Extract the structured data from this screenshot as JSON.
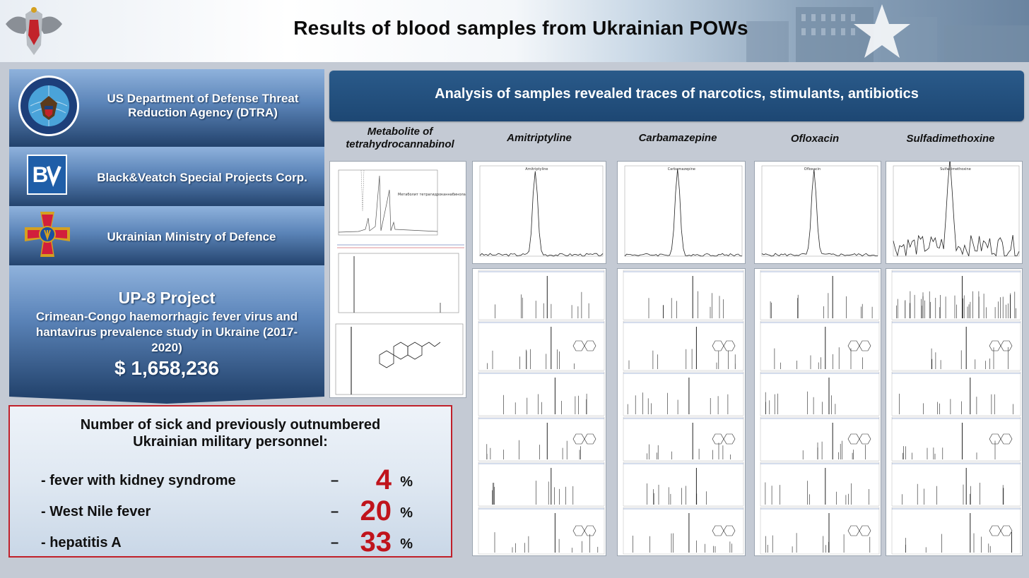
{
  "header": {
    "title": "Results of blood samples from Ukrainian POWs"
  },
  "left": {
    "dtra": "US Department of Defense Threat Reduction Agency (DTRA)",
    "dtra_seal_text": "DEFENSE THREAT REDUCTION AGENCY · UNITED STATES OF AMERICA",
    "bv": "Black&Veatch Special Projects Corp.",
    "ua": "Ukrainian Ministry of Defence",
    "project": {
      "name": "UP-8 Project",
      "description": "Crimean-Congo haemorrhagic fever virus and hantavirus prevalence study in Ukraine (2017-2020)",
      "amount": "$ 1,658,236"
    }
  },
  "stats": {
    "heading_line1": "Number of sick and previously outnumbered",
    "heading_line2": "Ukrainian military personnel:",
    "rows": [
      {
        "label": "- fever with kidney syndrome",
        "dash": "–",
        "value": "4",
        "unit": "%"
      },
      {
        "label": "- West Nile fever",
        "dash": "–",
        "value": "20",
        "unit": "%"
      },
      {
        "label": "- hepatitis A",
        "dash": "–",
        "value": "33",
        "unit": "%"
      }
    ]
  },
  "analysis": {
    "banner": "Analysis of samples revealed traces of narcotics, stimulants, antibiotics",
    "columns": [
      {
        "title": "Metabolite of tetrahydrocannabinol",
        "peak_label": "Метаболит тетрагидроканнабинола"
      },
      {
        "title": "Amitriptyline",
        "peak_label": "Amitriptyline"
      },
      {
        "title": "Carbamazepine",
        "peak_label": "Carbamazepine"
      },
      {
        "title": "Ofloxacin",
        "peak_label": "Ofloxacin"
      },
      {
        "title": "Sulfadimethoxine",
        "peak_label": "Sulfadimethoxine"
      }
    ]
  },
  "colors": {
    "accent_red": "#c0141c",
    "banner_blue": "#1d4773",
    "band_top": "#8fb2dc",
    "band_bottom": "#24446e"
  }
}
